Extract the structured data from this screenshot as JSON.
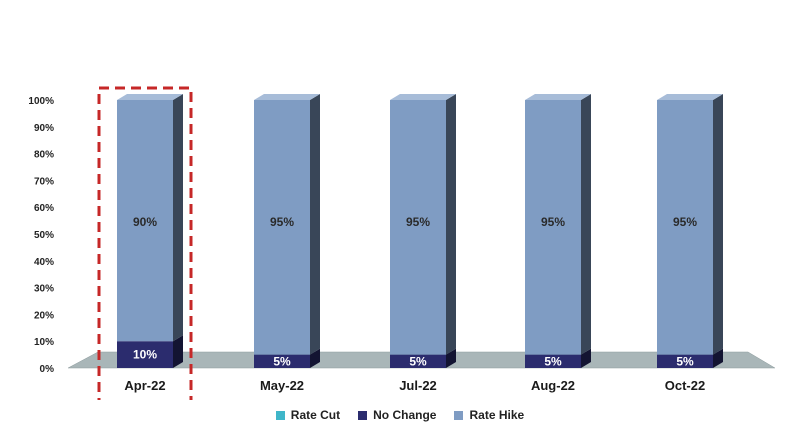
{
  "chart_data": {
    "type": "bar",
    "stacked": true,
    "categories": [
      "Apr-22",
      "May-22",
      "Jul-22",
      "Aug-22",
      "Oct-22"
    ],
    "series": [
      {
        "name": "Rate Cut",
        "values": [
          0,
          0,
          0,
          0,
          0
        ],
        "color": "#3fb6c9"
      },
      {
        "name": "No Change",
        "values": [
          10,
          5,
          5,
          5,
          5
        ],
        "color": "#2b2c6e"
      },
      {
        "name": "Rate Hike",
        "values": [
          90,
          95,
          95,
          95,
          95
        ],
        "color": "#7f9cc3"
      }
    ],
    "data_labels": {
      "No Change": [
        "10%",
        "5%",
        "5%",
        "5%",
        "5%"
      ],
      "Rate Hike": [
        "90%",
        "95%",
        "95%",
        "95%",
        "95%"
      ]
    },
    "yticks": [
      "0%",
      "10%",
      "20%",
      "30%",
      "40%",
      "50%",
      "60%",
      "70%",
      "80%",
      "90%",
      "100%"
    ],
    "ylim": [
      0,
      100
    ],
    "grid": false,
    "legend_position": "bottom",
    "highlighted_category": "Apr-22",
    "highlight_color": "#c62828",
    "floor_color": "#a9b6b8"
  },
  "legend": {
    "items": [
      {
        "label": "Rate Cut",
        "color": "#3fb6c9"
      },
      {
        "label": "No Change",
        "color": "#2b2c6e"
      },
      {
        "label": "Rate Hike",
        "color": "#7f9cc3"
      }
    ]
  }
}
